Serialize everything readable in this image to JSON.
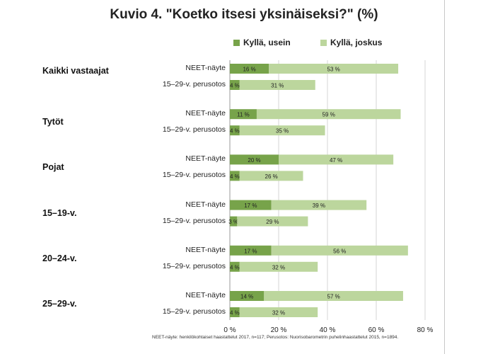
{
  "chart_data": {
    "type": "bar",
    "orientation": "horizontal",
    "stacked": true,
    "title": "Kuvio 4. \"Koetko itsesi yksinäiseksi?\" (%)",
    "legend_position": "top",
    "grid": true,
    "xlim": [
      0,
      80
    ],
    "ticks": [
      {
        "value": 0,
        "label": "0 %"
      },
      {
        "value": 20,
        "label": "20 %"
      },
      {
        "value": 40,
        "label": "40 %"
      },
      {
        "value": 60,
        "label": "60 %"
      },
      {
        "value": 80,
        "label": "80 %"
      }
    ],
    "series": [
      {
        "name": "Kyllä, usein",
        "color": "#77a34a"
      },
      {
        "name": "Kyllä, joskus",
        "color": "#bcd69d"
      }
    ],
    "groups": [
      {
        "label": "Kaikki vastaajat",
        "rows": [
          {
            "label": "NEET-näyte",
            "values": [
              16,
              53
            ],
            "value_labels": [
              "16 %",
              "53 %"
            ]
          },
          {
            "label": "15–29-v. perusotos",
            "values": [
              4,
              31
            ],
            "value_labels": [
              "4 %",
              "31 %"
            ]
          }
        ]
      },
      {
        "label": "Tytöt",
        "rows": [
          {
            "label": "NEET-näyte",
            "values": [
              11,
              59
            ],
            "value_labels": [
              "11 %",
              "59 %"
            ]
          },
          {
            "label": "15–29-v. perusotos",
            "values": [
              4,
              35
            ],
            "value_labels": [
              "4 %",
              "35 %"
            ]
          }
        ]
      },
      {
        "label": "Pojat",
        "rows": [
          {
            "label": "NEET-näyte",
            "values": [
              20,
              47
            ],
            "value_labels": [
              "20 %",
              "47 %"
            ]
          },
          {
            "label": "15–29-v. perusotos",
            "values": [
              4,
              26
            ],
            "value_labels": [
              "4 %",
              "26 %"
            ]
          }
        ]
      },
      {
        "label": "15–19-v.",
        "rows": [
          {
            "label": "NEET-näyte",
            "values": [
              17,
              39
            ],
            "value_labels": [
              "17 %",
              "39 %"
            ]
          },
          {
            "label": "15–29-v. perusotos",
            "values": [
              3,
              29
            ],
            "value_labels": [
              "3 %",
              "29 %"
            ]
          }
        ]
      },
      {
        "label": "20–24-v.",
        "rows": [
          {
            "label": "NEET-näyte",
            "values": [
              17,
              56
            ],
            "value_labels": [
              "17 %",
              "56 %"
            ]
          },
          {
            "label": "15–29-v. perusotos",
            "values": [
              4,
              32
            ],
            "value_labels": [
              "4 %",
              "32 %"
            ]
          }
        ]
      },
      {
        "label": "25–29-v.",
        "rows": [
          {
            "label": "NEET-näyte",
            "values": [
              14,
              57
            ],
            "value_labels": [
              "14 %",
              "57 %"
            ]
          },
          {
            "label": "15–29-v. perusotos",
            "values": [
              4,
              32
            ],
            "value_labels": [
              "4 %",
              "32 %"
            ]
          }
        ]
      }
    ],
    "note": "NEET-näyte: henkilökohtaiset haastattelut 2017,  n=117; Perusotos: Nuorisobarometrin puhelinhaastattelut 2015, n=1894."
  }
}
